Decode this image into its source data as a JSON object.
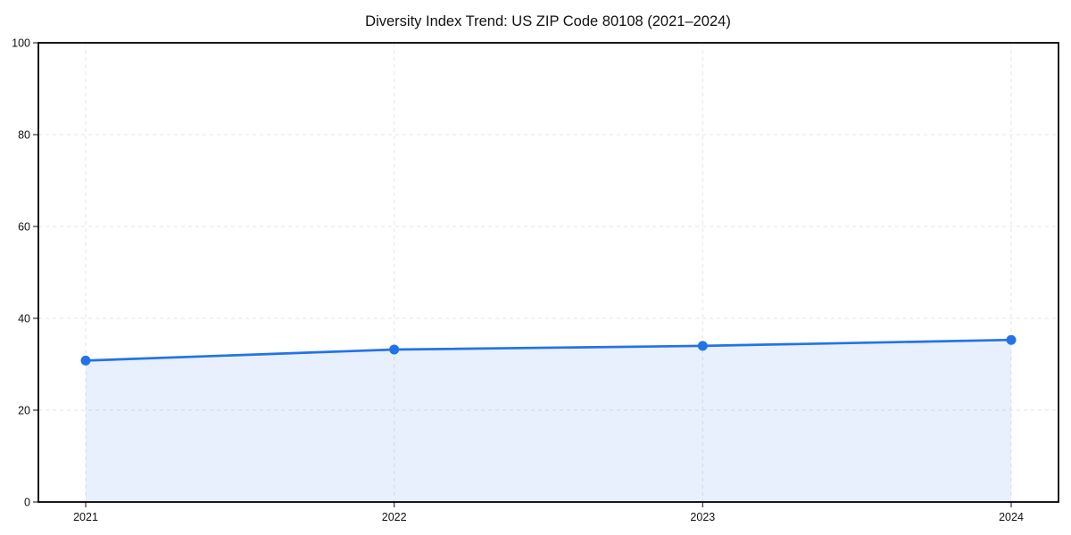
{
  "chart": {
    "title": "Diversity Index Trend: US ZIP Code 80108 (2021–2024)"
  },
  "chart_data": {
    "type": "area",
    "title": "Diversity Index Trend: US ZIP Code 80108 (2021–2024)",
    "x": [
      2021,
      2022,
      2023,
      2024
    ],
    "xticklabels": [
      "2021",
      "2022",
      "2023",
      "2024"
    ],
    "series": [
      {
        "name": "Diversity Index",
        "values": [
          30.8,
          33.2,
          34.0,
          35.3
        ]
      }
    ],
    "xlabel": "",
    "ylabel": "",
    "ylim": [
      0,
      100
    ],
    "yticks": [
      0,
      20,
      40,
      60,
      80,
      100
    ],
    "grid": true,
    "grid_style": "dashed",
    "legend": "none",
    "colors": {
      "line": "#2273e8",
      "marker": "#2273e8",
      "fill": "rgba(34,115,232,0.11)",
      "gridline": "#e6e6e6",
      "spine": "#000000",
      "tick": "#333333",
      "text": "#111111",
      "background": "#ffffff"
    }
  }
}
